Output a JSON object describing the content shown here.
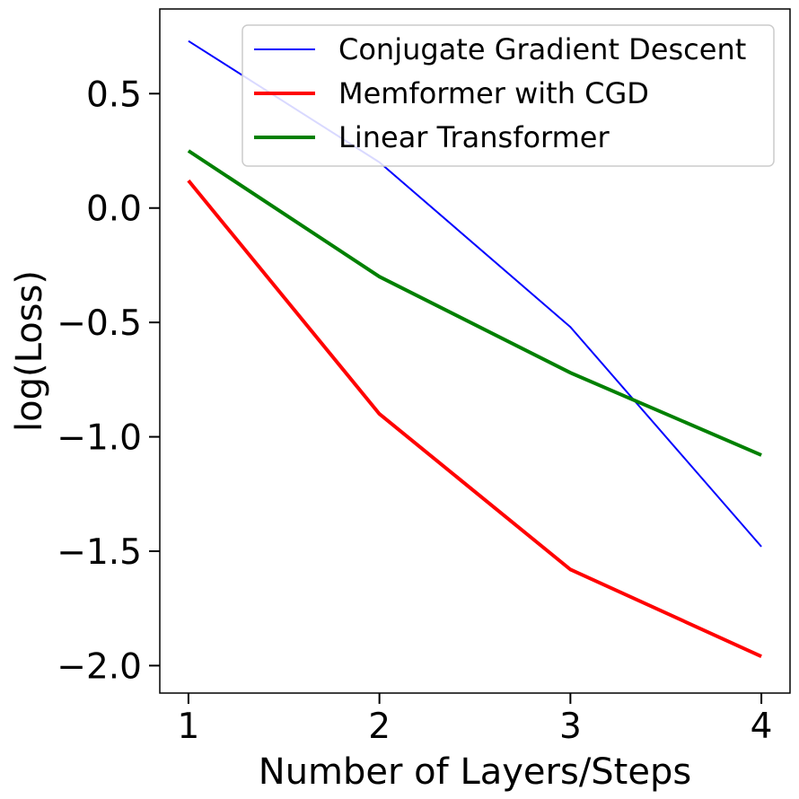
{
  "chart_data": {
    "type": "line",
    "title": "",
    "xlabel": "Number of Layers/Steps",
    "ylabel": "log(Loss)",
    "x": [
      1,
      2,
      3,
      4
    ],
    "xticks": [
      1,
      2,
      3,
      4
    ],
    "xtick_labels": [
      "1",
      "2",
      "3",
      "4"
    ],
    "yticks": [
      0.5,
      0.0,
      -0.5,
      -1.0,
      -1.5,
      -2.0
    ],
    "ytick_labels": [
      "0.5",
      "0.0",
      "−0.5",
      "−1.0",
      "−1.5",
      "−2.0"
    ],
    "xlim": [
      0.85,
      4.15
    ],
    "ylim": [
      -2.12,
      0.87
    ],
    "grid": false,
    "legend_position": "top-right",
    "series": [
      {
        "name": "Conjugate Gradient Descent",
        "color": "#0000ff",
        "values": [
          0.73,
          0.2,
          -0.52,
          -1.48
        ]
      },
      {
        "name": "Memformer with CGD",
        "color": "#ff0000",
        "values": [
          0.12,
          -0.9,
          -1.58,
          -1.96
        ]
      },
      {
        "name": "Linear Transformer",
        "color": "#008000",
        "values": [
          0.25,
          -0.3,
          -0.72,
          -1.08
        ]
      }
    ]
  }
}
